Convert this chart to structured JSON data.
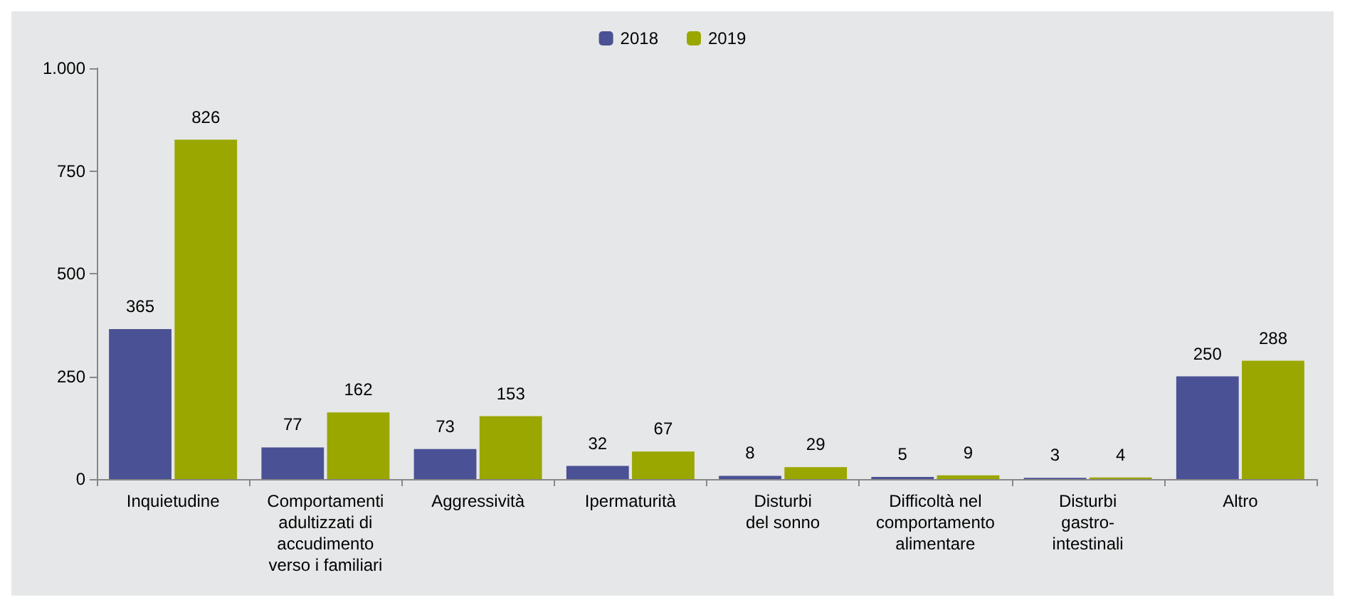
{
  "chart_data": {
    "type": "bar",
    "categories": [
      "Inquietudine",
      "Comportamenti\nadultizzati di\naccudimento\nverso i familiari",
      "Aggressività",
      "Ipermaturità",
      "Disturbi\ndel sonno",
      "Difficoltà nel\ncomportamento\nalimentare",
      "Disturbi\ngastro-\nintestinali",
      "Altro"
    ],
    "series": [
      {
        "name": "2018",
        "color": "#4a5194",
        "values": [
          365,
          77,
          73,
          32,
          8,
          5,
          3,
          250
        ]
      },
      {
        "name": "2019",
        "color": "#9aa700",
        "values": [
          826,
          162,
          153,
          67,
          29,
          9,
          4,
          288
        ]
      }
    ],
    "ylim": [
      0,
      1000
    ],
    "yticks": [
      0,
      250,
      500,
      750,
      {
        "value": 1000,
        "label": "1.000"
      }
    ],
    "grid": false,
    "legend": "top",
    "data_labels": true
  }
}
